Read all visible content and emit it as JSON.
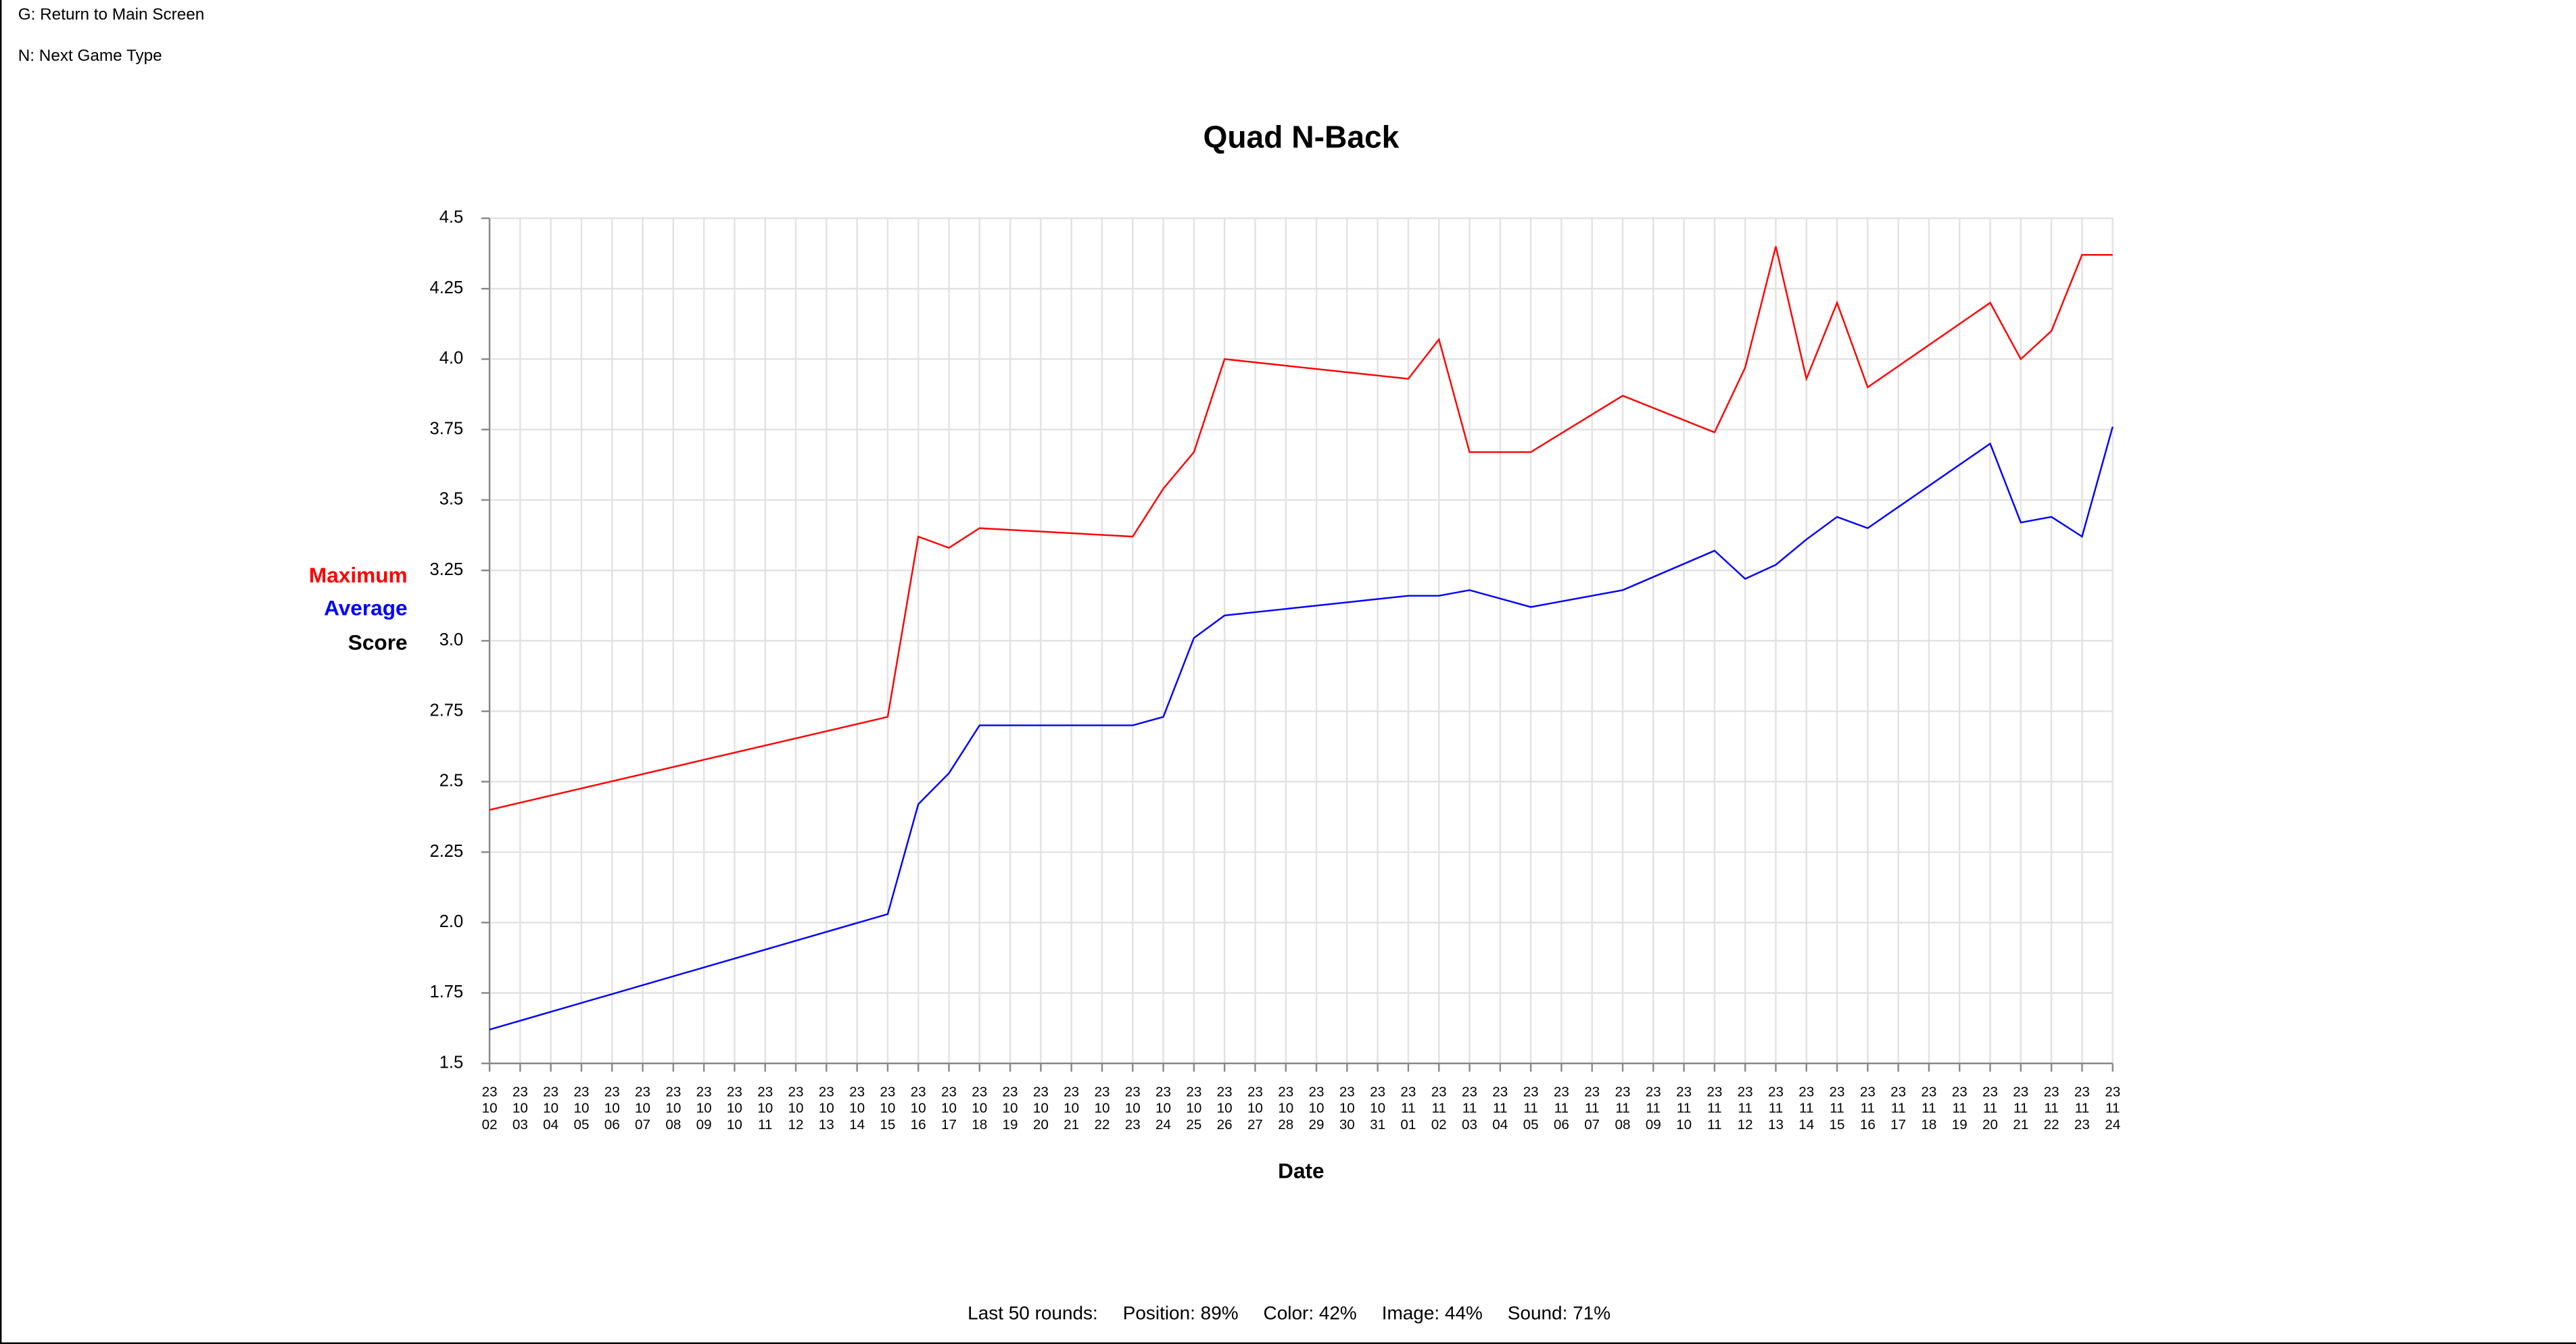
{
  "header": {
    "keys": [
      "G: Return to Main Screen",
      "N: Next Game Type"
    ]
  },
  "chart_data": {
    "type": "line",
    "title": "Quad N-Back",
    "xlabel": "Date",
    "ylabel": "Score",
    "categories": [
      "23\n10\n02",
      "23\n10\n03",
      "23\n10\n04",
      "23\n10\n05",
      "23\n10\n06",
      "23\n10\n07",
      "23\n10\n08",
      "23\n10\n09",
      "23\n10\n10",
      "23\n10\n11",
      "23\n10\n12",
      "23\n10\n13",
      "23\n10\n14",
      "23\n10\n15",
      "23\n10\n16",
      "23\n10\n17",
      "23\n10\n18",
      "23\n10\n19",
      "23\n10\n20",
      "23\n10\n21",
      "23\n10\n22",
      "23\n10\n23",
      "23\n10\n24",
      "23\n10\n25",
      "23\n10\n26",
      "23\n10\n27",
      "23\n10\n28",
      "23\n10\n29",
      "23\n10\n30",
      "23\n10\n31",
      "23\n11\n01",
      "23\n11\n02",
      "23\n11\n03",
      "23\n11\n04",
      "23\n11\n05",
      "23\n11\n06",
      "23\n11\n07",
      "23\n11\n08",
      "23\n11\n09",
      "23\n11\n10",
      "23\n11\n11",
      "23\n11\n12",
      "23\n11\n13",
      "23\n11\n14",
      "23\n11\n15",
      "23\n11\n16",
      "23\n11\n17",
      "23\n11\n18",
      "23\n11\n19",
      "23\n11\n20",
      "23\n11\n21",
      "23\n11\n22",
      "23\n11\n23",
      "23\n11\n24"
    ],
    "series": [
      {
        "name": "Maximum",
        "color": "#ff0000",
        "x": [
          "23\n10\n02",
          "23\n10\n15",
          "23\n10\n16",
          "23\n10\n17",
          "23\n10\n18",
          "23\n10\n23",
          "23\n10\n24",
          "23\n10\n25",
          "23\n10\n26",
          "23\n11\n01",
          "23\n11\n02",
          "23\n11\n03",
          "23\n11\n05",
          "23\n11\n08",
          "23\n11\n11",
          "23\n11\n12",
          "23\n11\n13",
          "23\n11\n14",
          "23\n11\n15",
          "23\n11\n16",
          "23\n11\n20",
          "23\n11\n21",
          "23\n11\n22",
          "23\n11\n23",
          "23\n11\n24"
        ],
        "values": [
          2.4,
          2.73,
          3.37,
          3.33,
          3.4,
          3.37,
          3.54,
          3.67,
          4.0,
          3.93,
          4.07,
          3.67,
          3.67,
          3.87,
          3.74,
          3.97,
          4.4,
          3.93,
          4.2,
          3.9,
          4.2,
          4.0,
          4.1,
          4.37,
          4.37
        ]
      },
      {
        "name": "Average",
        "color": "#0000ff",
        "x": [
          "23\n10\n02",
          "23\n10\n15",
          "23\n10\n16",
          "23\n10\n17",
          "23\n10\n18",
          "23\n10\n23",
          "23\n10\n24",
          "23\n10\n25",
          "23\n10\n26",
          "23\n11\n01",
          "23\n11\n02",
          "23\n11\n03",
          "23\n11\n05",
          "23\n11\n08",
          "23\n11\n11",
          "23\n11\n12",
          "23\n11\n13",
          "23\n11\n14",
          "23\n11\n15",
          "23\n11\n16",
          "23\n11\n20",
          "23\n11\n21",
          "23\n11\n22",
          "23\n11\n23",
          "23\n11\n24"
        ],
        "values": [
          1.62,
          2.03,
          2.42,
          2.53,
          2.7,
          2.7,
          2.73,
          3.01,
          3.09,
          3.16,
          3.16,
          3.18,
          3.12,
          3.18,
          3.32,
          3.22,
          3.27,
          3.36,
          3.44,
          3.4,
          3.7,
          3.42,
          3.44,
          3.37,
          3.76
        ]
      }
    ],
    "ylim": [
      1.5,
      4.5
    ],
    "yticks": [
      1.5,
      1.75,
      {
        "value": 2,
        "label": "2.0"
      },
      2.25,
      2.5,
      2.75,
      {
        "value": 3,
        "label": "3.0"
      },
      3.25,
      3.5,
      3.75,
      {
        "value": 4,
        "label": "4.0"
      },
      4.25,
      4.5
    ],
    "grid": true
  },
  "footer": {
    "items": [
      "Last 50 rounds:",
      "Position: 89%",
      "Color: 42%",
      "Image: 44%",
      "Sound: 71%"
    ]
  }
}
